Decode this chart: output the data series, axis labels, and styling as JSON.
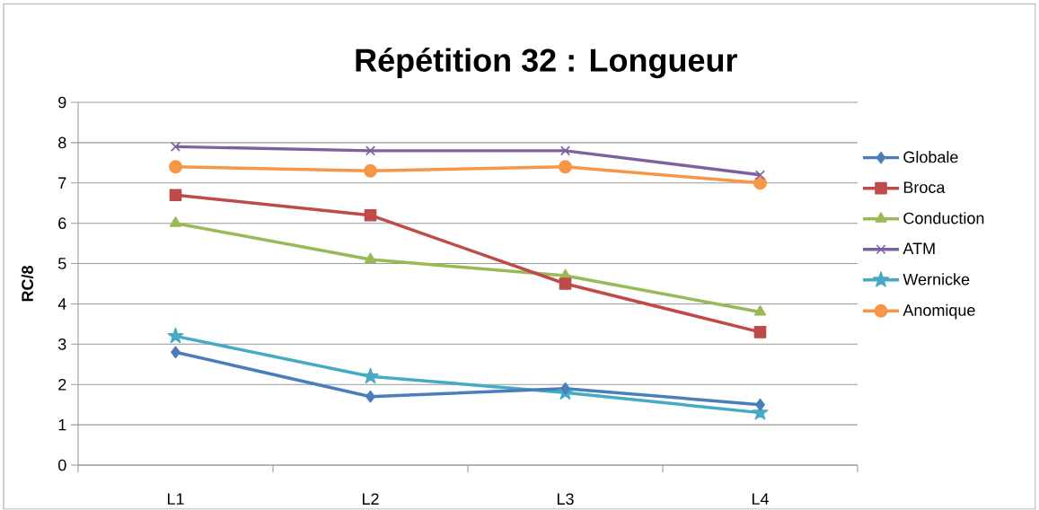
{
  "chart_data": {
    "type": "line",
    "title": "Répétition 32 : Longueur",
    "ylabel": "RC/8",
    "categories": [
      "L1",
      "L2",
      "L3",
      "L4"
    ],
    "series": [
      {
        "name": "Globale",
        "color": "#4a7ebb",
        "marker": "diamond",
        "values": [
          2.8,
          1.7,
          1.9,
          1.5
        ]
      },
      {
        "name": "Broca",
        "color": "#be4b48",
        "marker": "square",
        "values": [
          6.7,
          6.2,
          4.5,
          3.3
        ]
      },
      {
        "name": "Conduction",
        "color": "#98b954",
        "marker": "triangle",
        "values": [
          6.0,
          5.1,
          4.7,
          3.8
        ]
      },
      {
        "name": "ATM",
        "color": "#7d60a0",
        "marker": "cross",
        "values": [
          7.9,
          7.8,
          7.8,
          7.2
        ]
      },
      {
        "name": "Wernicke",
        "color": "#46aac5",
        "marker": "star",
        "values": [
          3.2,
          2.2,
          1.8,
          1.3
        ]
      },
      {
        "name": "Anomique",
        "color": "#f79646",
        "marker": "circle",
        "values": [
          7.4,
          7.3,
          7.4,
          7.0
        ]
      }
    ],
    "ylim": [
      0,
      9
    ],
    "yticks": [
      0,
      1,
      2,
      3,
      4,
      5,
      6,
      7,
      8,
      9
    ],
    "grid": "y",
    "legend": "right",
    "line_style": "solid"
  }
}
